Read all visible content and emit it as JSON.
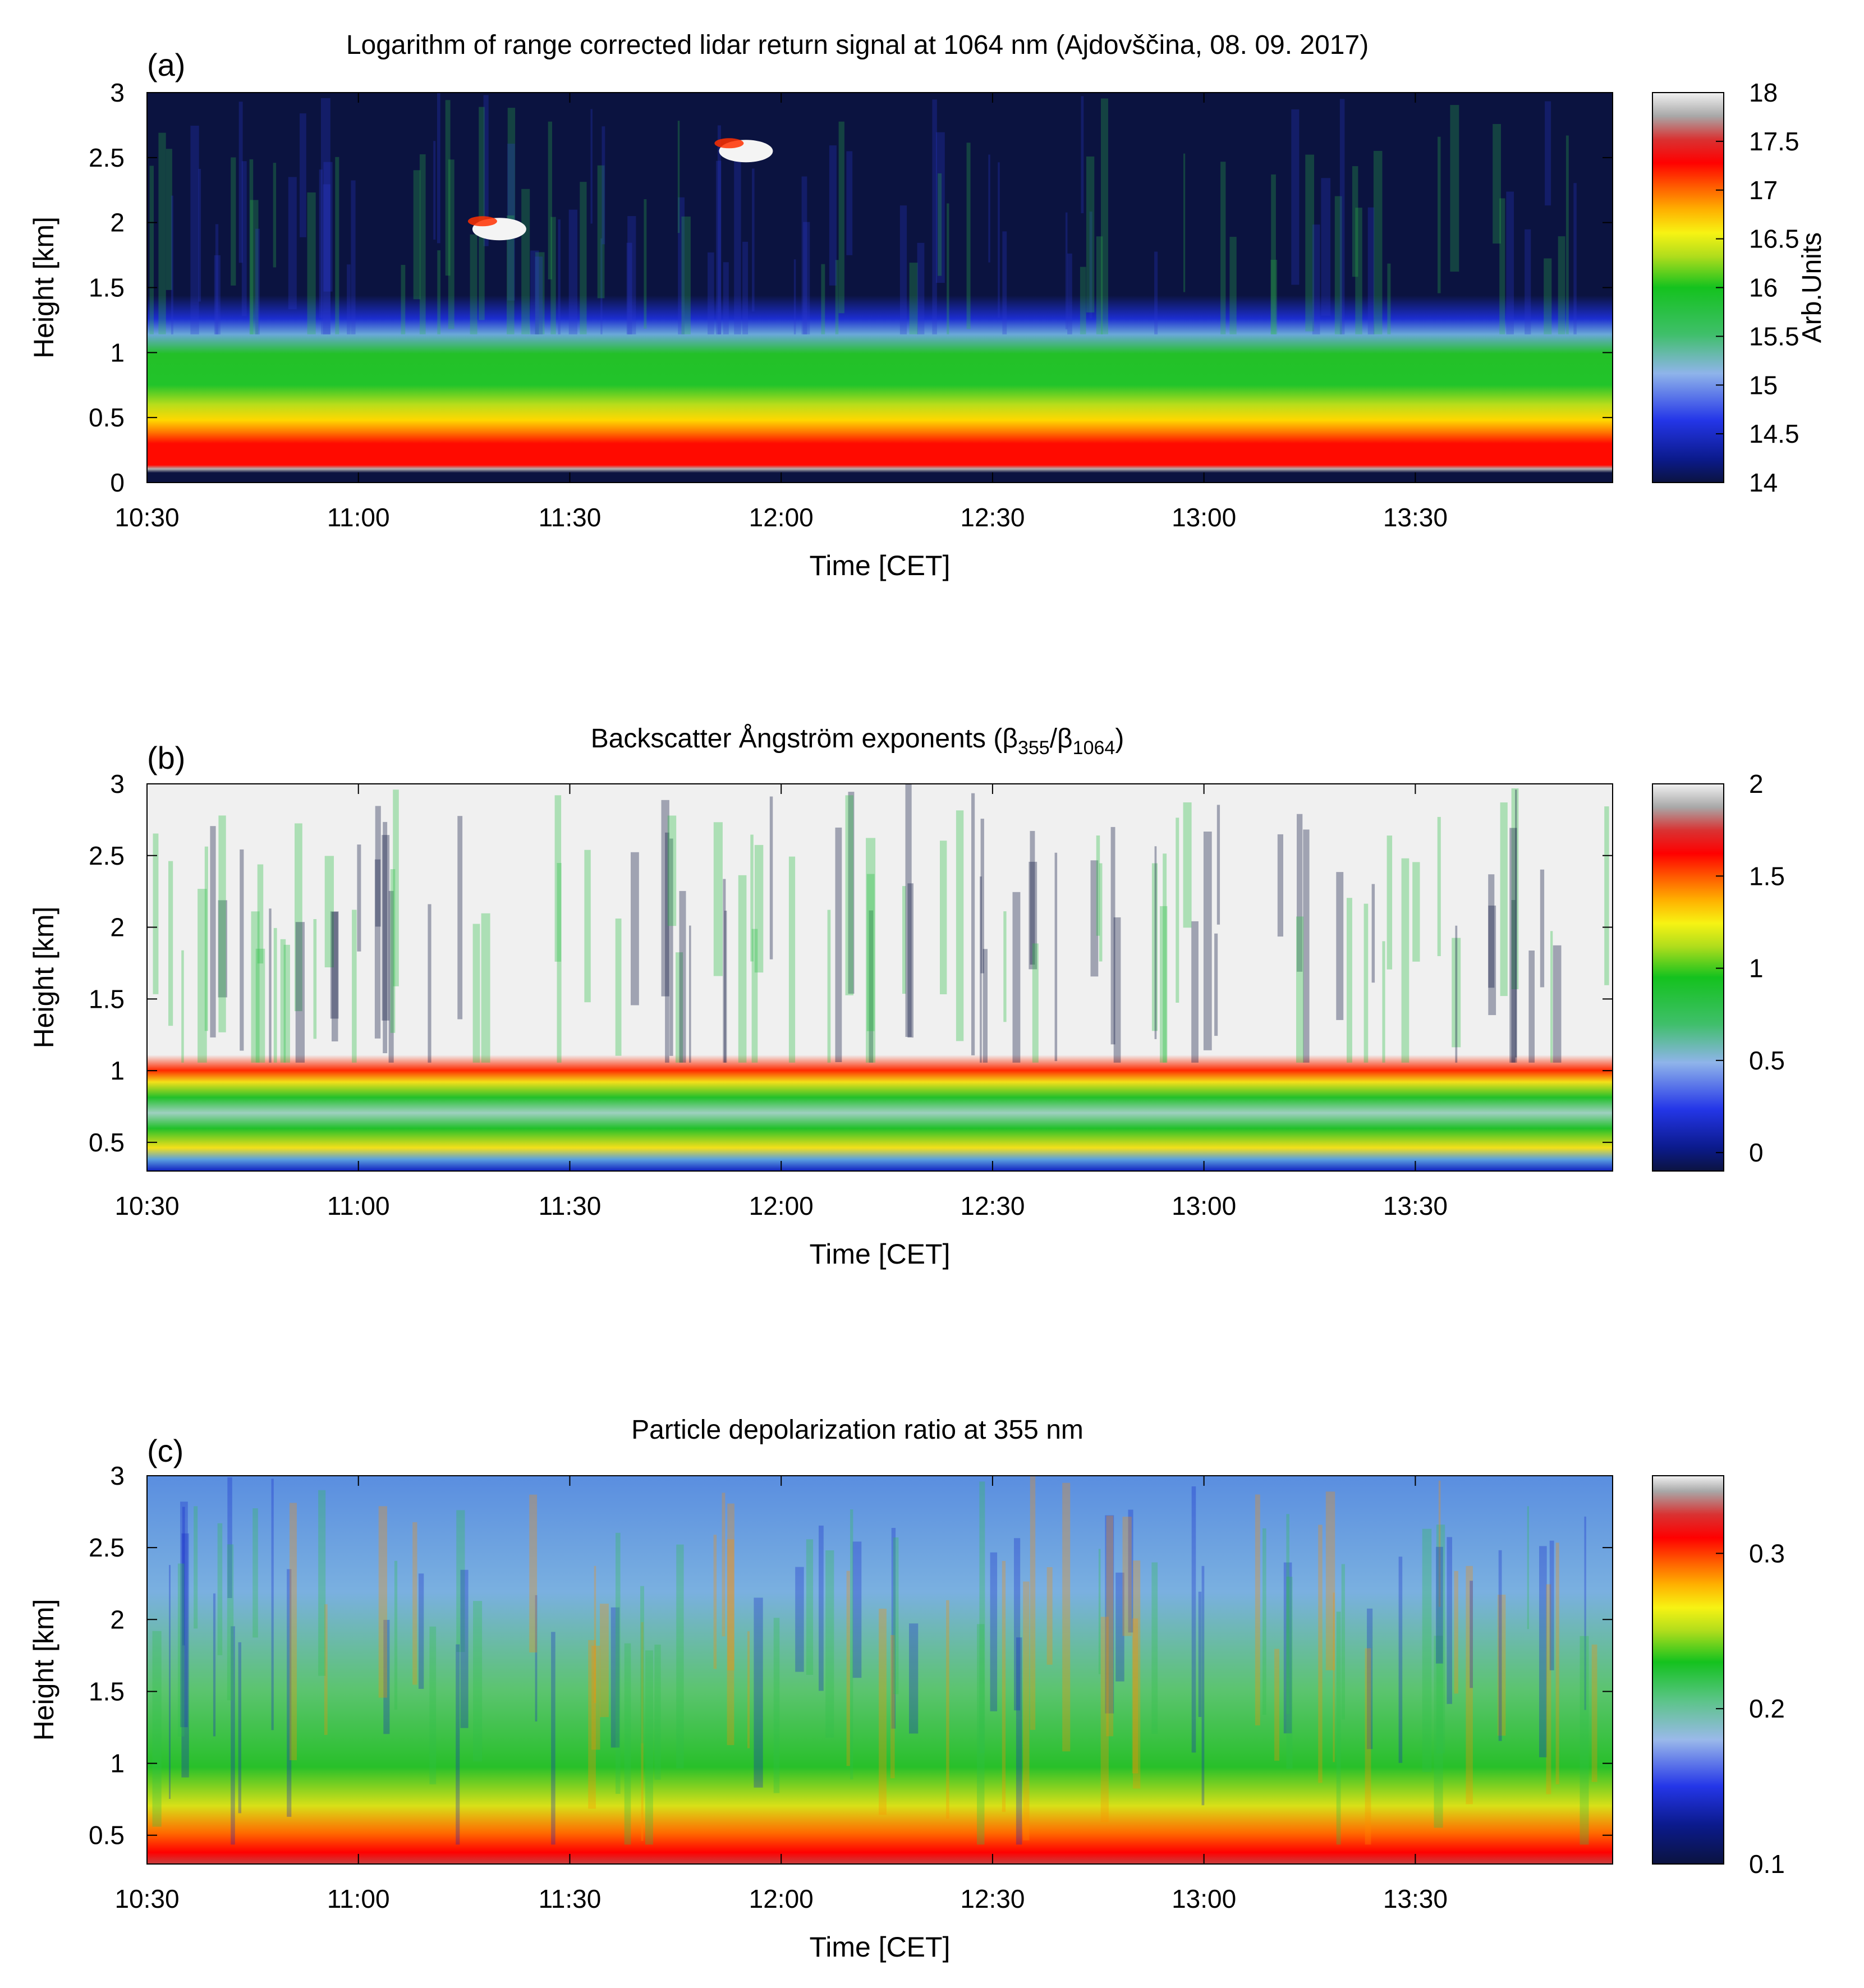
{
  "chart_data": [
    {
      "type": "heatmap",
      "panel_label": "(a)",
      "title": "Logarithm of range corrected lidar return signal at 1064 nm (Ajdovščina, 08. 09. 2017)",
      "xlabel": "Time [CET]",
      "ylabel": "Height [km]",
      "colorbar_label": "Arb.Units",
      "x_range": [
        "10:30",
        "13:58"
      ],
      "y_range": [
        0,
        3
      ],
      "y_ticks": [
        "0",
        "0.5",
        "1",
        "1.5",
        "2",
        "2.5",
        "3"
      ],
      "x_ticks": [
        "10:30",
        "11:00",
        "11:30",
        "12:00",
        "12:30",
        "13:00",
        "13:30"
      ],
      "colorbar_range": [
        14,
        18
      ],
      "colorbar_ticks": [
        "14",
        "14.5",
        "15",
        "15.5",
        "16",
        "16.5",
        "17",
        "17.5",
        "18"
      ],
      "features": [
        {
          "description": "near-surface strong return (red band)",
          "height_km": [
            0.05,
            0.3
          ],
          "value": 17
        },
        {
          "description": "boundary layer aerosol (yellow-green)",
          "height_km": [
            0.3,
            0.8
          ],
          "value": 15.8
        },
        {
          "description": "cloud",
          "time": "11:20",
          "height_km": 1.95,
          "value": 18
        },
        {
          "description": "cloud",
          "time": "11:55",
          "height_km": 2.55,
          "value": 18
        }
      ]
    },
    {
      "type": "heatmap",
      "panel_label": "(b)",
      "title": "Backscatter Ångström exponents (β",
      "title_sub1": "355",
      "title_mid": "/β",
      "title_sub2": "1064",
      "title_end": ")",
      "xlabel": "Time [CET]",
      "ylabel": "Height [km]",
      "x_range": [
        "10:30",
        "13:58"
      ],
      "y_range": [
        0.3,
        3
      ],
      "y_ticks": [
        "0.5",
        "1",
        "1.5",
        "2",
        "2.5",
        "3"
      ],
      "x_ticks": [
        "10:30",
        "11:00",
        "11:30",
        "12:00",
        "12:30",
        "13:00",
        "13:30"
      ],
      "colorbar_range": [
        -0.1,
        2
      ],
      "colorbar_ticks": [
        "0",
        "0.5",
        "1",
        "1.5",
        "2"
      ],
      "features": [
        {
          "description": "boundary layer values",
          "height_km": [
            0.3,
            0.8
          ],
          "value": 0.6
        },
        {
          "description": "top of boundary layer",
          "height_km": 0.85,
          "value": 1.4
        },
        {
          "description": "free troposphere",
          "height_km": [
            1.0,
            3.0
          ],
          "value": 2
        }
      ]
    },
    {
      "type": "heatmap",
      "panel_label": "(c)",
      "title": "Particle depolarization ratio at 355 nm",
      "xlabel": "Time [CET]",
      "ylabel": "Height [km]",
      "x_range": [
        "10:30",
        "13:58"
      ],
      "y_range": [
        0.3,
        3
      ],
      "y_ticks": [
        "0.5",
        "1",
        "1.5",
        "2",
        "2.5",
        "3"
      ],
      "x_ticks": [
        "10:30",
        "11:00",
        "11:30",
        "12:00",
        "12:30",
        "13:00",
        "13:30"
      ],
      "colorbar_range": [
        0.1,
        0.35
      ],
      "colorbar_ticks": [
        "0.1",
        "0.2",
        "0.3"
      ],
      "features": [
        {
          "description": "near-surface high depolarization",
          "height_km": [
            0.3,
            0.5
          ],
          "value": 0.28
        },
        {
          "description": "mid-level values",
          "height_km": [
            0.5,
            2.0
          ],
          "value": 0.19
        },
        {
          "description": "upper-level low values",
          "height_km": [
            2.0,
            3.0
          ],
          "value": 0.16
        }
      ]
    }
  ]
}
